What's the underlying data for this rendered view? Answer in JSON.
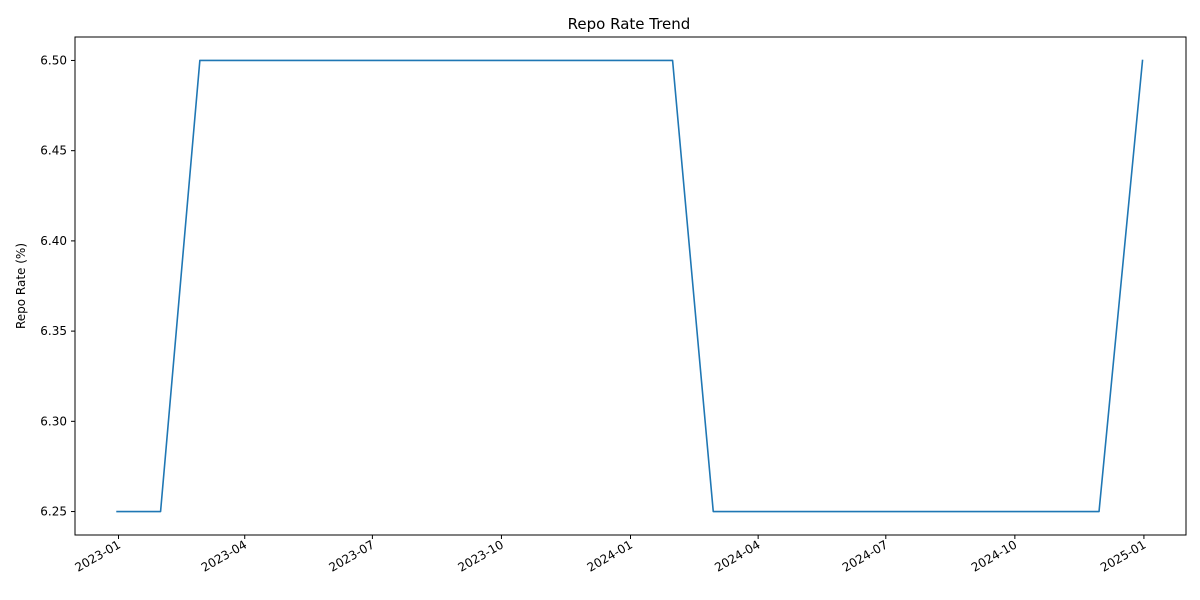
{
  "chart_data": {
    "type": "line",
    "title": "Repo Rate Trend",
    "xlabel": "",
    "ylabel": "Repo Rate (%)",
    "grid": false,
    "legend": "none",
    "x_type": "date",
    "xlim": [
      "2022-12-01",
      "2025-01-31"
    ],
    "ylim": [
      6.237,
      6.513
    ],
    "x_ticks": [
      "2023-01-01",
      "2023-04-01",
      "2023-07-01",
      "2023-10-01",
      "2024-01-01",
      "2024-04-01",
      "2024-07-01",
      "2024-10-01",
      "2025-01-01"
    ],
    "x_tick_labels": [
      "2023-01",
      "2023-04",
      "2023-07",
      "2023-10",
      "2024-01",
      "2024-04",
      "2024-07",
      "2024-10",
      "2025-01"
    ],
    "y_ticks": [
      6.25,
      6.3,
      6.35,
      6.4,
      6.45,
      6.5
    ],
    "y_tick_labels": [
      "6.25",
      "6.30",
      "6.35",
      "6.40",
      "6.45",
      "6.50"
    ],
    "series": [
      {
        "color": "#1f77b4",
        "x": [
          "2022-12-31",
          "2023-01-31",
          "2023-02-28",
          "2023-03-31",
          "2023-04-30",
          "2023-05-31",
          "2023-06-30",
          "2023-07-31",
          "2023-08-31",
          "2023-09-30",
          "2023-10-31",
          "2023-11-30",
          "2023-12-31",
          "2024-01-31",
          "2024-02-29",
          "2024-03-31",
          "2024-04-30",
          "2024-05-31",
          "2024-06-30",
          "2024-07-31",
          "2024-08-31",
          "2024-09-30",
          "2024-10-31",
          "2024-11-30",
          "2024-12-31"
        ],
        "values": [
          6.25,
          6.25,
          6.5,
          6.5,
          6.5,
          6.5,
          6.5,
          6.5,
          6.5,
          6.5,
          6.5,
          6.5,
          6.5,
          6.5,
          6.25,
          6.25,
          6.25,
          6.25,
          6.25,
          6.25,
          6.25,
          6.25,
          6.25,
          6.25,
          6.5
        ]
      }
    ]
  }
}
